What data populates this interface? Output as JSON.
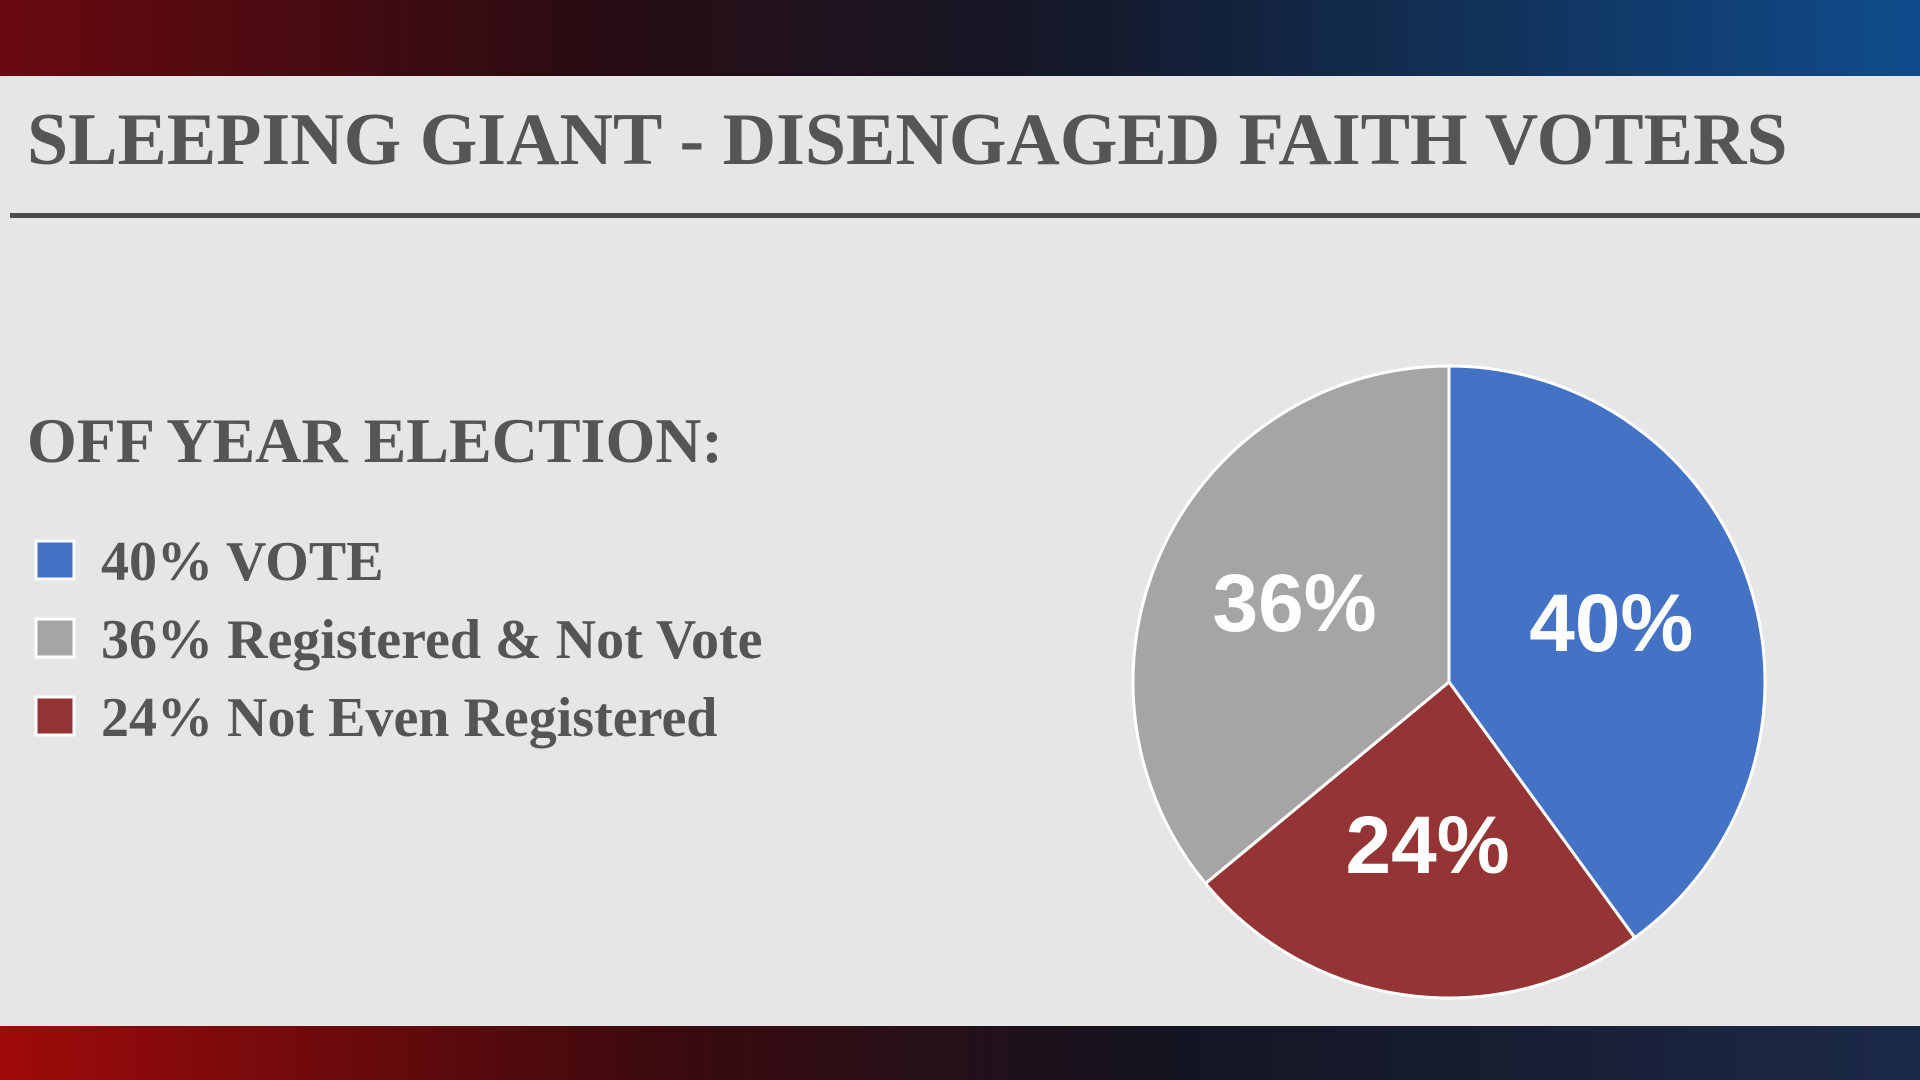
{
  "chart_data": {
    "type": "pie",
    "title": "SLEEPING GIANT - DISENGAGED FAITH VOTERS",
    "subtitle": "OFF YEAR ELECTION:",
    "categories": [
      "40% VOTE",
      "36% Registered & Not Vote",
      "24% Not Even Registered"
    ],
    "values": [
      40,
      36,
      24
    ],
    "value_labels": [
      "40%",
      "36%",
      "24%"
    ],
    "colors": [
      "#4472c4",
      "#a5a5a5",
      "#943434"
    ],
    "slice_order": [
      0,
      2,
      1
    ]
  }
}
